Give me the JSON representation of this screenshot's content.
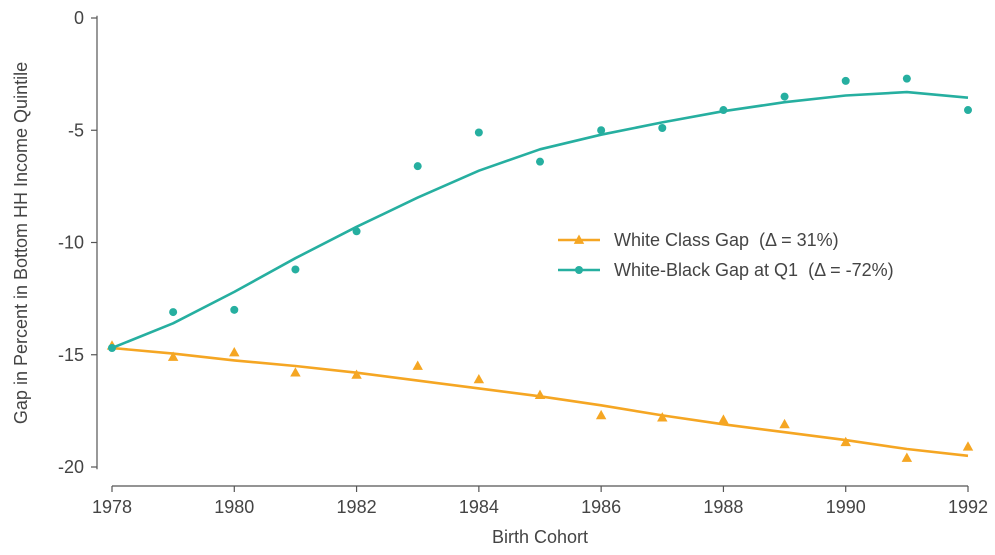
{
  "chart_data": {
    "type": "line",
    "title": "",
    "xlabel": "Birth Cohort",
    "ylabel": "Gap in Percent in Bottom HH Income Quintile",
    "xlim": [
      1978,
      1992
    ],
    "ylim": [
      -21,
      0.5
    ],
    "x_ticks": [
      1978,
      1980,
      1982,
      1984,
      1986,
      1988,
      1990,
      1992
    ],
    "y_ticks": [
      0,
      -5,
      -10,
      -15,
      -20
    ],
    "y_tick_labels": [
      "0",
      "-5",
      "-10",
      "-15",
      "-20"
    ],
    "grid": false,
    "legend_position": "right-middle",
    "series": [
      {
        "name": "White Class Gap  (Δ = 31%)",
        "color": "#F5A623",
        "marker": "triangle",
        "x": [
          1978,
          1979,
          1980,
          1981,
          1982,
          1983,
          1984,
          1985,
          1986,
          1987,
          1988,
          1989,
          1990,
          1991,
          1992
        ],
        "points": [
          -14.6,
          -15.1,
          -14.9,
          -15.8,
          -15.9,
          -15.5,
          -16.1,
          -16.8,
          -17.7,
          -17.8,
          -17.9,
          -18.1,
          -18.9,
          -19.6,
          -19.1
        ],
        "fit": [
          -14.7,
          -14.95,
          -15.25,
          -15.5,
          -15.8,
          -16.15,
          -16.5,
          -16.85,
          -17.25,
          -17.7,
          -18.1,
          -18.45,
          -18.8,
          -19.2,
          -19.5
        ]
      },
      {
        "name": "White-Black Gap at Q1  (Δ = -72%)",
        "color": "#26AFA0",
        "marker": "circle",
        "x": [
          1978,
          1979,
          1980,
          1981,
          1982,
          1983,
          1984,
          1985,
          1986,
          1987,
          1988,
          1989,
          1990,
          1991,
          1992
        ],
        "points": [
          -14.7,
          -13.1,
          -13.0,
          -11.2,
          -9.5,
          -6.6,
          -5.1,
          -6.4,
          -5.0,
          -4.9,
          -4.1,
          -3.5,
          -2.8,
          -2.7,
          -4.1
        ],
        "fit": [
          -14.7,
          -13.6,
          -12.2,
          -10.7,
          -9.3,
          -8.0,
          -6.8,
          -5.85,
          -5.2,
          -4.65,
          -4.15,
          -3.75,
          -3.45,
          -3.3,
          -3.55
        ]
      }
    ]
  }
}
